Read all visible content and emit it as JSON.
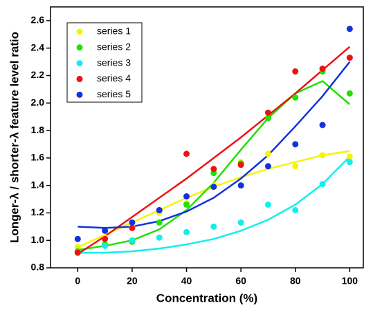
{
  "chart_data": {
    "type": "scatter",
    "x_label": "Concentration (%)",
    "y_label": "Longer-λ / shorter-λ feature level ratio",
    "x": [
      0,
      10,
      20,
      30,
      40,
      50,
      60,
      70,
      80,
      90,
      100
    ],
    "xlim": [
      -10,
      105
    ],
    "xticks": [
      0,
      20,
      40,
      60,
      80,
      100
    ],
    "ylim": [
      0.8,
      2.7
    ],
    "yticks": [
      0.8,
      {
        "value": 1,
        "label": "1.0"
      },
      1.2,
      1.4,
      1.6,
      1.8,
      {
        "value": 2,
        "label": "2.0"
      },
      2.2,
      2.4,
      2.6
    ],
    "legend": "upper left",
    "series": [
      {
        "name": "series 1",
        "color": "#f5f500",
        "values": [
          0.95,
          1.02,
          1.1,
          1.2,
          1.27,
          1.4,
          1.57,
          1.63,
          1.54,
          1.62,
          1.61
        ],
        "fit": [
          0.95,
          1.04,
          1.13,
          1.22,
          1.31,
          1.39,
          1.46,
          1.52,
          1.57,
          1.62,
          1.65
        ]
      },
      {
        "name": "series 2",
        "color": "#22e000",
        "values": [
          0.92,
          0.97,
          0.99,
          1.13,
          1.26,
          1.49,
          1.56,
          1.89,
          2.04,
          2.23,
          2.07
        ],
        "fit": [
          0.93,
          0.96,
          1.0,
          1.08,
          1.22,
          1.42,
          1.66,
          1.89,
          2.07,
          2.16,
          1.99
        ]
      },
      {
        "name": "series 3",
        "color": "#11eeee",
        "values": [
          0.91,
          0.96,
          1.0,
          1.02,
          1.06,
          1.1,
          1.13,
          1.26,
          1.22,
          1.41,
          1.57
        ],
        "fit": [
          0.91,
          0.91,
          0.92,
          0.94,
          0.97,
          1.01,
          1.07,
          1.15,
          1.26,
          1.41,
          1.61
        ]
      },
      {
        "name": "series 4",
        "color": "#ee1111",
        "values": [
          0.91,
          1.01,
          1.09,
          1.22,
          1.63,
          1.52,
          1.55,
          1.93,
          2.23,
          2.25,
          2.33
        ],
        "fit": [
          0.9,
          1.03,
          1.17,
          1.31,
          1.45,
          1.6,
          1.75,
          1.91,
          2.07,
          2.24,
          2.41
        ]
      },
      {
        "name": "series 5",
        "color": "#1133dd",
        "values": [
          1.01,
          1.07,
          1.13,
          1.22,
          1.32,
          1.39,
          1.4,
          1.54,
          1.7,
          1.84,
          2.54
        ],
        "fit": [
          1.1,
          1.09,
          1.1,
          1.14,
          1.21,
          1.31,
          1.45,
          1.62,
          1.83,
          2.05,
          2.3
        ]
      }
    ]
  }
}
